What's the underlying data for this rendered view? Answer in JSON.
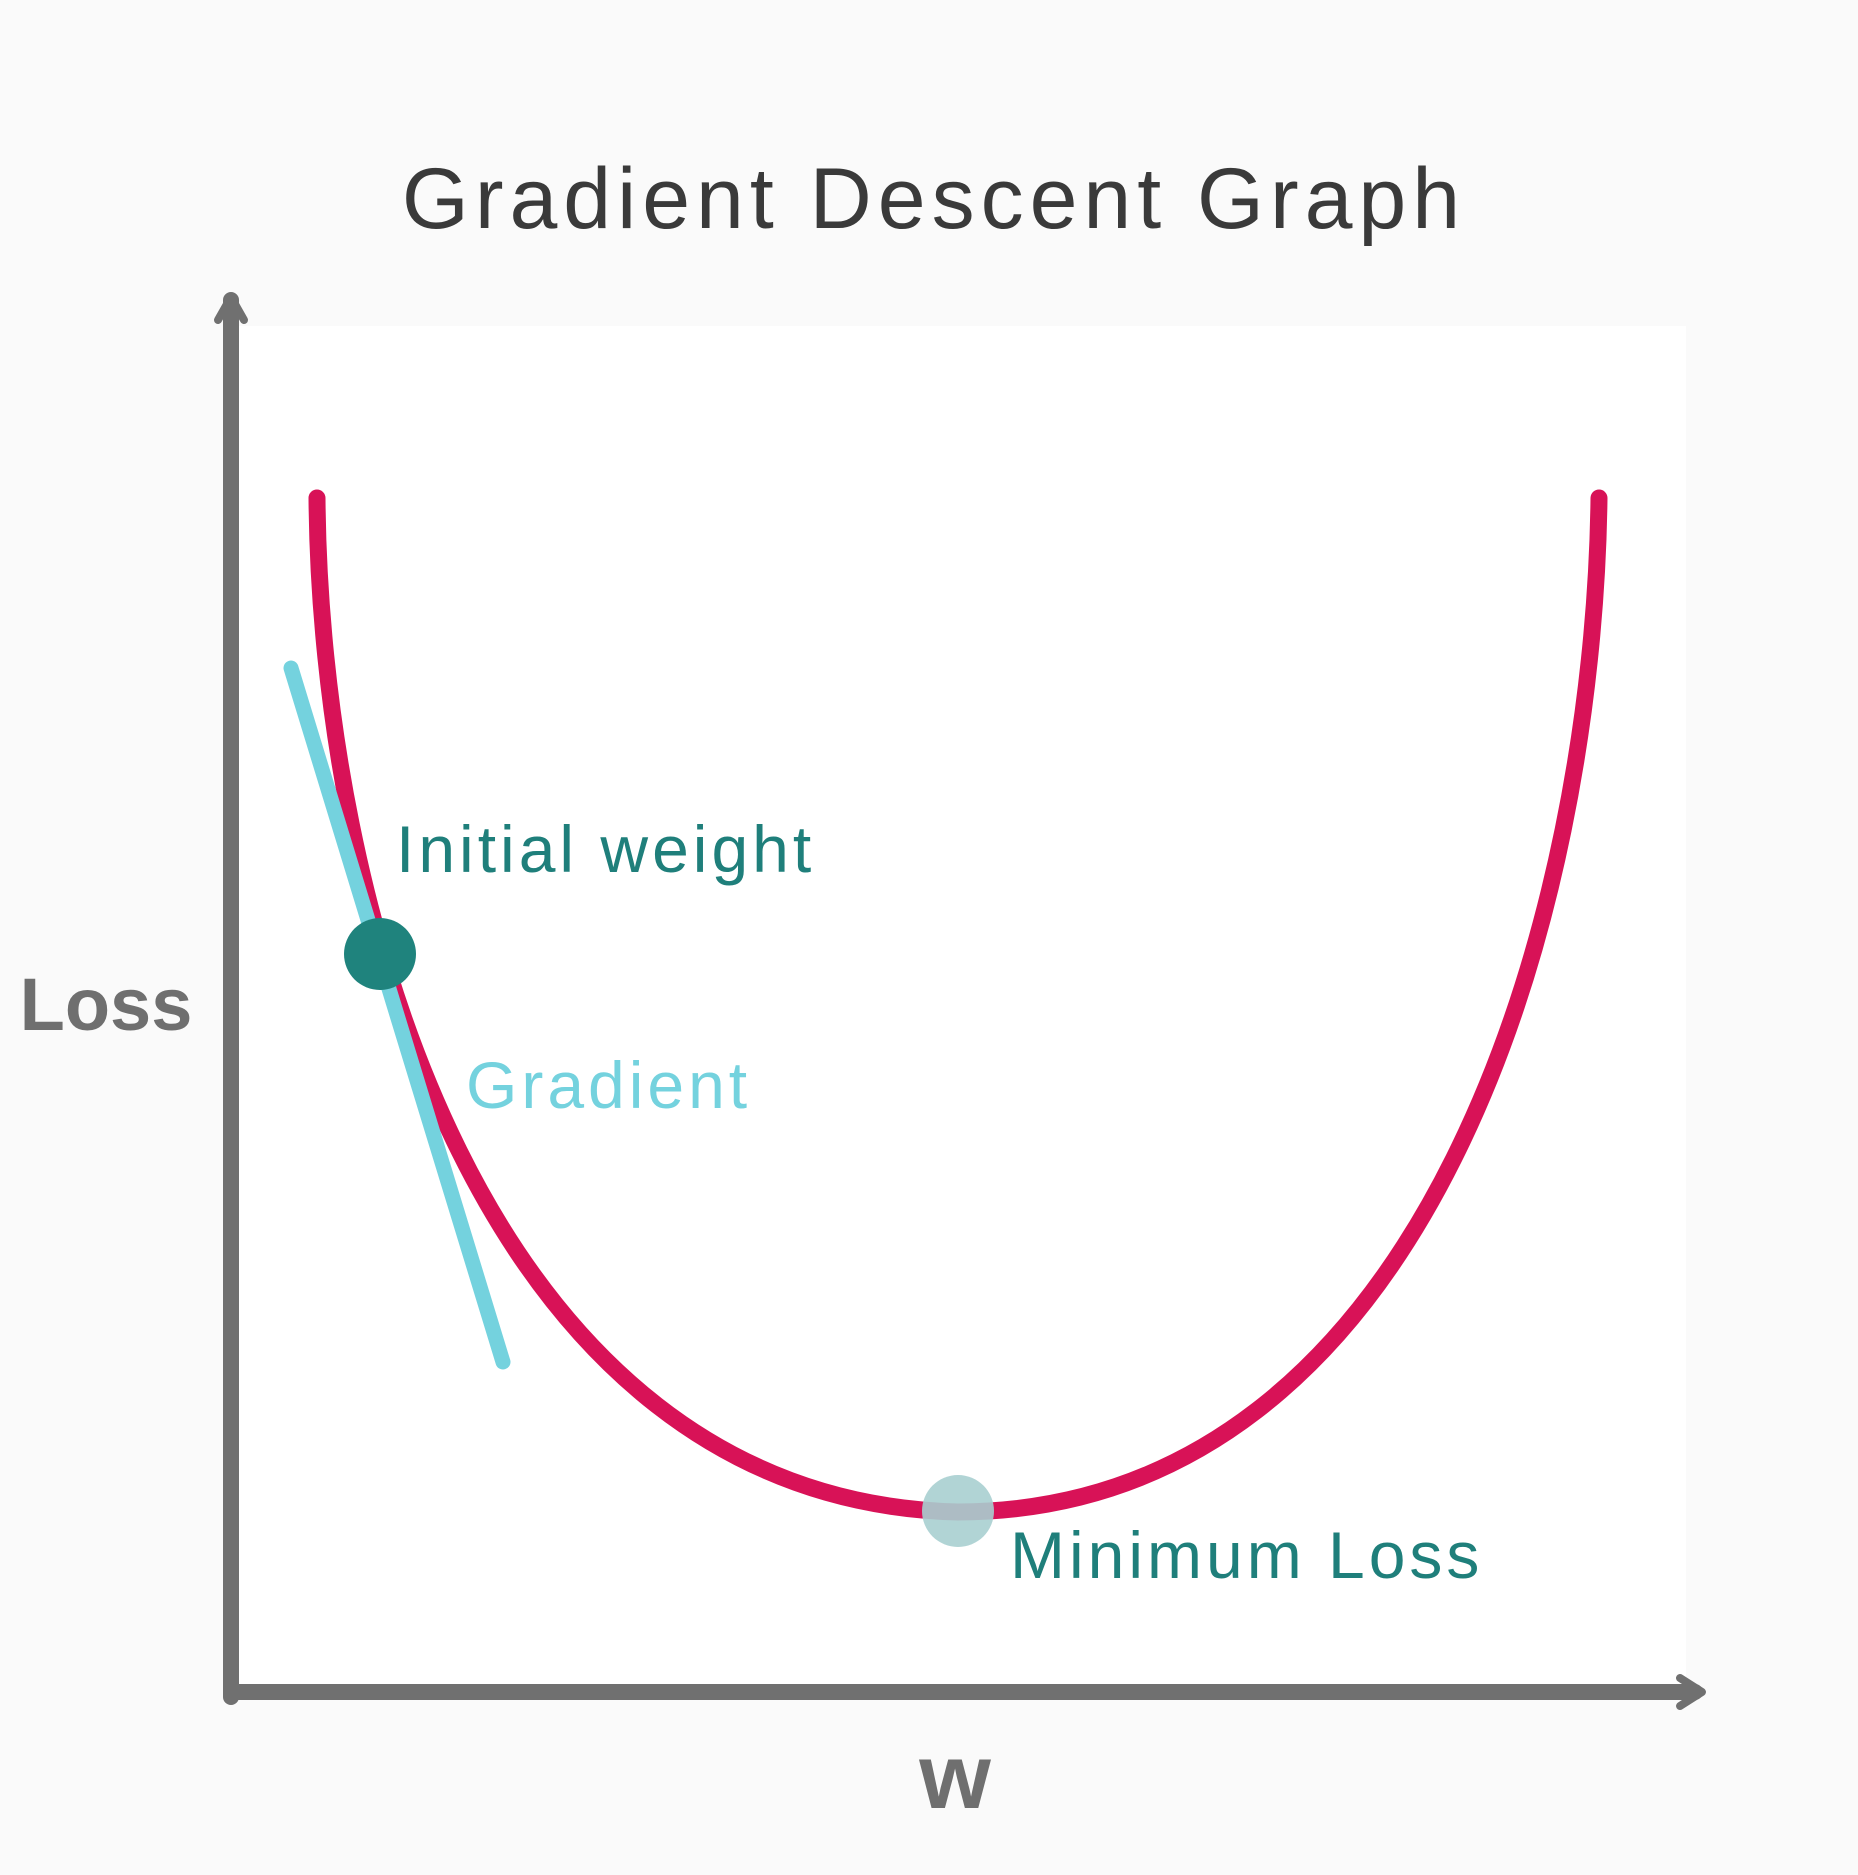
{
  "title": "Gradient Descent Graph",
  "axes": {
    "y_label": "Loss",
    "x_label": "w"
  },
  "annotations": {
    "initial_weight": "Initial weight",
    "gradient": "Gradient",
    "minimum_loss": "Minimum Loss"
  },
  "colors": {
    "background": "#fafafa",
    "plot_area": "#ffffff",
    "axis": "#707070",
    "curve": "#d81257",
    "gradient_line": "#74d2de",
    "initial_point": "#1f837d",
    "minimum_point": "#a9cfd0",
    "annotation_text": "#1f7f7b",
    "gradient_text": "#74d2de",
    "title_text": "#3a3a3a"
  }
}
